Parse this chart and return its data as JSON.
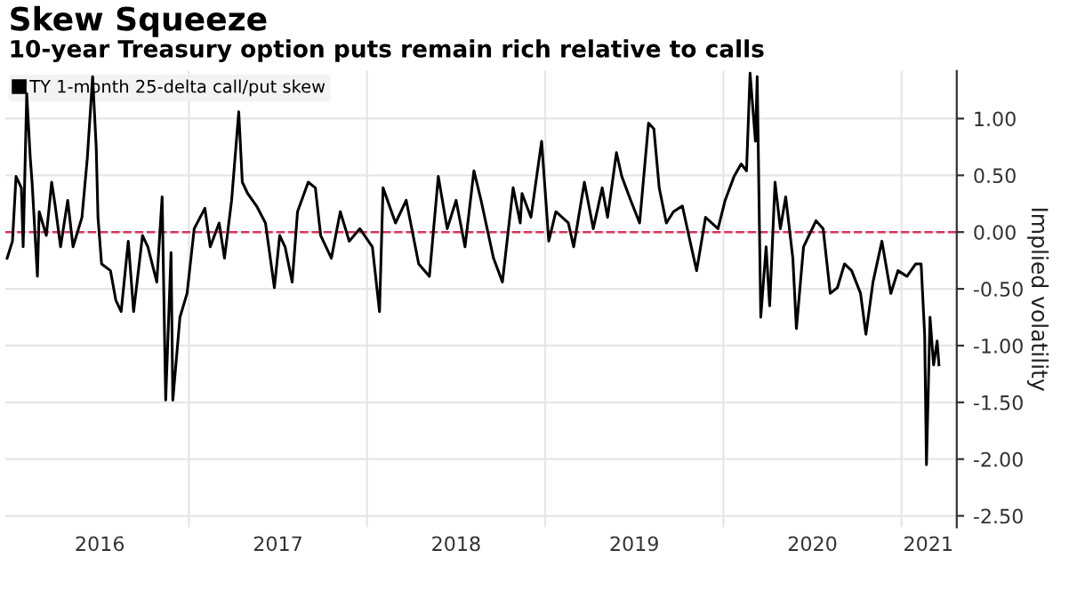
{
  "chart_data": {
    "type": "line",
    "title": "Skew Squeeze",
    "subtitle": "10-year Treasury option puts remain rich relative to calls",
    "ylabel": "Implied volatility",
    "x": [
      2015.98,
      2016.01,
      2016.03,
      2016.06,
      2016.07,
      2016.09,
      2016.11,
      2016.12,
      2016.15,
      2016.16,
      2016.2,
      2016.23,
      2016.25,
      2016.28,
      2016.32,
      2016.35,
      2016.4,
      2016.43,
      2016.46,
      2016.48,
      2016.49,
      2016.51,
      2016.56,
      2016.59,
      2016.62,
      2016.66,
      2016.69,
      2016.74,
      2016.77,
      2016.82,
      2016.85,
      2016.87,
      2016.9,
      2016.91,
      2016.95,
      2016.99,
      2017.03,
      2017.09,
      2017.12,
      2017.17,
      2017.2,
      2017.24,
      2017.28,
      2017.3,
      2017.33,
      2017.38,
      2017.43,
      2017.48,
      2017.51,
      2017.54,
      2017.58,
      2017.61,
      2017.67,
      2017.71,
      2017.74,
      2017.8,
      2017.85,
      2017.9,
      2017.96,
      2018.03,
      2018.07,
      2018.09,
      2018.16,
      2018.22,
      2018.29,
      2018.35,
      2018.4,
      2018.45,
      2018.5,
      2018.55,
      2018.6,
      2018.64,
      2018.71,
      2018.76,
      2018.82,
      2018.86,
      2018.87,
      2018.92,
      2018.98,
      2019.02,
      2019.06,
      2019.13,
      2019.16,
      2019.22,
      2019.27,
      2019.32,
      2019.35,
      2019.4,
      2019.43,
      2019.48,
      2019.53,
      2019.58,
      2019.61,
      2019.64,
      2019.68,
      2019.72,
      2019.77,
      2019.82,
      2019.85,
      2019.9,
      2019.97,
      2020.01,
      2020.06,
      2020.1,
      2020.13,
      2020.15,
      2020.18,
      2020.19,
      2020.21,
      2020.24,
      2020.26,
      2020.29,
      2020.32,
      2020.35,
      2020.39,
      2020.41,
      2020.45,
      2020.52,
      2020.56,
      2020.6,
      2020.64,
      2020.68,
      2020.72,
      2020.77,
      2020.8,
      2020.84,
      2020.89,
      2020.94,
      2020.98,
      2021.03,
      2021.08,
      2021.11,
      2021.13,
      2021.14,
      2021.16,
      2021.18,
      2021.2,
      2021.21
    ],
    "series": [
      {
        "name": "TY 1-month 25-delta call/put skew",
        "color": "#000000",
        "values": [
          -0.23,
          -0.08,
          0.49,
          0.39,
          -0.13,
          1.22,
          0.65,
          0.44,
          -0.39,
          0.18,
          -0.03,
          0.44,
          0.23,
          -0.13,
          0.28,
          -0.13,
          0.13,
          0.65,
          1.37,
          0.75,
          0.13,
          -0.28,
          -0.34,
          -0.6,
          -0.7,
          -0.08,
          -0.7,
          -0.03,
          -0.13,
          -0.44,
          0.31,
          -1.48,
          -0.18,
          -1.48,
          -0.75,
          -0.54,
          0.03,
          0.21,
          -0.13,
          0.08,
          -0.23,
          0.28,
          1.06,
          0.44,
          0.34,
          0.23,
          0.08,
          -0.49,
          -0.03,
          -0.13,
          -0.44,
          0.18,
          0.44,
          0.39,
          -0.03,
          -0.23,
          0.18,
          -0.08,
          0.03,
          -0.13,
          -0.7,
          0.39,
          0.08,
          0.28,
          -0.28,
          -0.39,
          0.49,
          0.03,
          0.28,
          -0.13,
          0.54,
          0.28,
          -0.23,
          -0.44,
          0.39,
          0.08,
          0.34,
          0.13,
          0.8,
          -0.08,
          0.18,
          0.08,
          -0.13,
          0.44,
          0.03,
          0.39,
          0.13,
          0.7,
          0.49,
          0.28,
          0.08,
          0.96,
          0.91,
          0.39,
          0.08,
          0.18,
          0.23,
          -0.13,
          -0.34,
          0.13,
          0.03,
          0.28,
          0.49,
          0.6,
          0.54,
          1.4,
          0.8,
          1.37,
          -0.75,
          -0.13,
          -0.65,
          0.44,
          0.03,
          0.31,
          -0.23,
          -0.85,
          -0.13,
          0.1,
          0.03,
          -0.54,
          -0.49,
          -0.28,
          -0.34,
          -0.54,
          -0.9,
          -0.44,
          -0.08,
          -0.54,
          -0.34,
          -0.39,
          -0.28,
          -0.28,
          -0.91,
          -2.05,
          -0.75,
          -1.17,
          -0.96,
          -1.17
        ]
      }
    ],
    "xlim": [
      2015.97,
      2021.31
    ],
    "ylim": [
      -2.6,
      1.42
    ],
    "xticks": [
      {
        "value": 2016.5,
        "label": "2016"
      },
      {
        "value": 2017.5,
        "label": "2017"
      },
      {
        "value": 2018.5,
        "label": "2018"
      },
      {
        "value": 2019.5,
        "label": "2019"
      },
      {
        "value": 2020.5,
        "label": "2020"
      },
      {
        "value": 2021.15,
        "label": "2021"
      },
      {
        "value": 2017,
        "label": null
      },
      {
        "value": 2018,
        "label": null
      },
      {
        "value": 2019,
        "label": null
      },
      {
        "value": 2020,
        "label": null
      },
      {
        "value": 2021,
        "label": null
      }
    ],
    "yticks": [
      {
        "value": 1.0,
        "label": "1.00"
      },
      {
        "value": 0.5,
        "label": "0.50"
      },
      {
        "value": 0.0,
        "label": "0.00"
      },
      {
        "value": -0.5,
        "label": "-0.50"
      },
      {
        "value": -1.0,
        "label": "-1.00"
      },
      {
        "value": -1.5,
        "label": "-1.50"
      },
      {
        "value": -2.0,
        "label": "-2.00"
      },
      {
        "value": -2.5,
        "label": "-2.50"
      }
    ],
    "ref_lines": [
      {
        "axis": "y",
        "value": 0,
        "color": "#d9325a",
        "line_style": "dashed"
      }
    ],
    "grid": true,
    "legend": "top left",
    "line_style": "solid",
    "marker": "none"
  }
}
